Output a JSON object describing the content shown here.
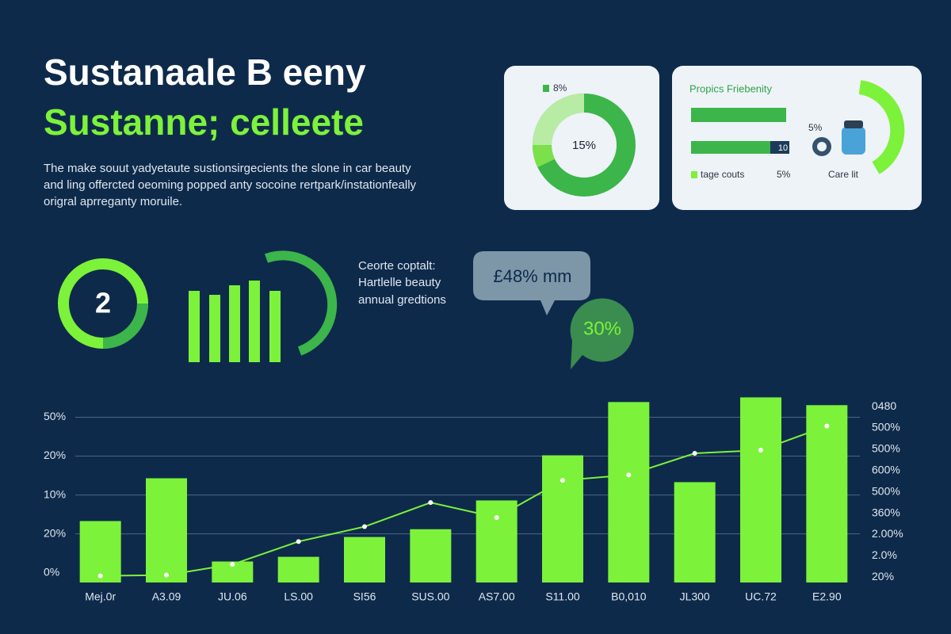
{
  "header": {
    "title": "Sustanaale B eeny",
    "subtitle": "Sustanne; celleete",
    "description": [
      "The make souut yadyetaute sustionsirgecients the slone in car beauty",
      "and ling offercted oeoming popped anty socoine rertpark/instationfeally",
      "origral aprreganty moruile."
    ]
  },
  "cards": [
    {
      "center_label": "15%",
      "legend": "8%"
    },
    {
      "title": "Propics Friebenity",
      "bar_label": "10",
      "side_label": "5%",
      "legend": "tage couts",
      "legend_value": "5%",
      "caption": "Care lit"
    }
  ],
  "badge": "2",
  "callout": {
    "lines": [
      "Ceorte coptalt:",
      "Hartlelle beauty",
      "annual gredtions"
    ],
    "bubble": "£48% mm",
    "highlight": "30%"
  },
  "chart_data": {
    "type": "bar",
    "categories": [
      "Mej.0r",
      "A3.09",
      "JU.06",
      "LS.00",
      "SI56",
      "SUS.00",
      "AS7.00",
      "S11.00",
      "B0,010",
      "JL300",
      "UC.72",
      "E2.90"
    ],
    "series": [
      {
        "type": "bar",
        "color": "#7cf23a",
        "values": [
          1.33,
          2.43,
          0.29,
          0.41,
          0.92,
          1.12,
          1.86,
          3.02,
          4.39,
          2.33,
          4.51,
          4.31
        ]
      },
      {
        "type": "line",
        "color": "#7cf23a",
        "axis": "y2",
        "values": [
          0.06,
          0.1,
          0.6,
          1.67,
          2.37,
          3.5,
          2.8,
          4.54,
          4.8,
          5.81,
          5.96,
          7.09
        ]
      }
    ],
    "ylim": [
      -0.25,
      4.6
    ],
    "yticks": [
      {
        "value": 0,
        "label": "0%"
      },
      {
        "value": 1,
        "label": "20%"
      },
      {
        "value": 2,
        "label": "10%"
      },
      {
        "value": 3,
        "label": "20%"
      },
      {
        "value": 4,
        "label": "50%"
      }
    ],
    "y2lim": [
      -0.25,
      8.6
    ],
    "y2ticks": [
      {
        "value": 0,
        "label": "20%"
      },
      {
        "value": 1,
        "label": "2.0%"
      },
      {
        "value": 2,
        "label": "2.00%"
      },
      {
        "value": 3,
        "label": "360%"
      },
      {
        "value": 4,
        "label": "500%"
      },
      {
        "value": 5,
        "label": "600%"
      },
      {
        "value": 6,
        "label": "500%"
      },
      {
        "value": 7,
        "label": "500%"
      },
      {
        "value": 8,
        "label": "0480"
      }
    ],
    "grid": true
  }
}
